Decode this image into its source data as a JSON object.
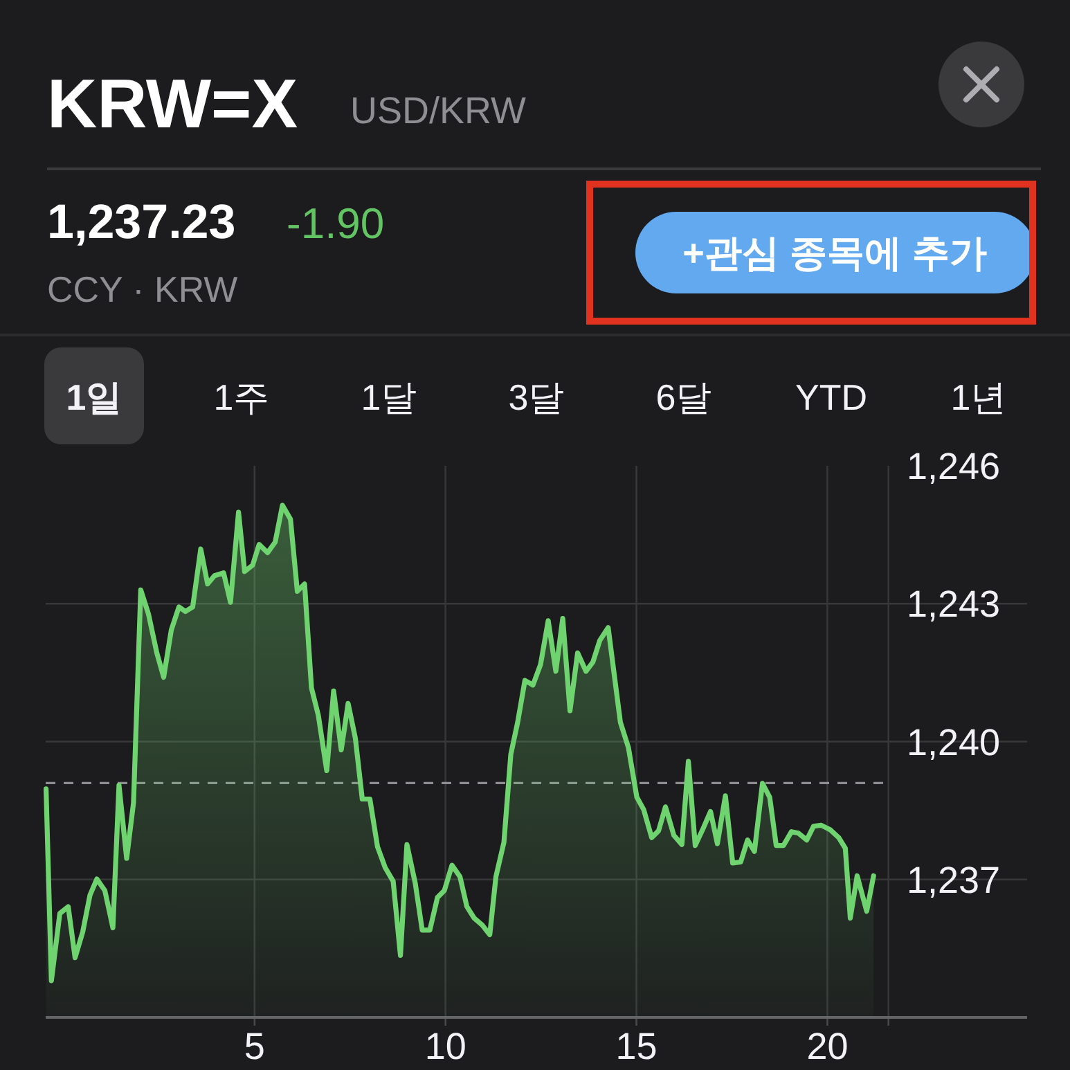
{
  "chart_data": {
    "type": "area",
    "title": "KRW=X",
    "subtitle": "USD/KRW",
    "color": "#6fd46f",
    "x": [
      -0.46,
      -0.32,
      -0.1,
      0.12,
      0.3,
      0.5,
      0.69,
      0.87,
      1.08,
      1.29,
      1.45,
      1.65,
      1.83,
      2.02,
      2.22,
      2.44,
      2.62,
      2.82,
      3.02,
      3.19,
      3.38,
      3.59,
      3.77,
      3.95,
      4.19,
      4.37,
      4.58,
      4.74,
      4.95,
      5.12,
      5.34,
      5.54,
      5.73,
      5.94,
      6.12,
      6.31,
      6.49,
      6.67,
      6.89,
      7.07,
      7.27,
      7.45,
      7.64,
      7.82,
      8.02,
      8.22,
      8.42,
      8.63,
      8.82,
      8.99,
      9.21,
      9.39,
      9.59,
      9.79,
      9.97,
      10.17,
      10.38,
      10.56,
      10.75,
      10.96,
      11.16,
      11.32,
      11.53,
      11.71,
      11.89,
      12.08,
      12.29,
      12.49,
      12.69,
      12.89,
      13.07,
      13.26,
      13.46,
      13.68,
      13.86,
      14.04,
      14.26,
      14.58,
      14.79,
      15.01,
      15.19,
      15.4,
      15.58,
      15.76,
      15.98,
      16.19,
      16.36,
      16.54,
      16.72,
      16.94,
      17.12,
      17.33,
      17.52,
      17.73,
      17.91,
      18.09,
      18.3,
      18.49,
      18.66,
      18.85,
      19.06,
      19.24,
      19.46,
      19.64,
      19.84,
      20.08,
      20.3,
      20.47,
      20.6,
      20.78,
      21.03,
      21.21
    ],
    "values": [
      1238.97,
      1234.8,
      1236.26,
      1236.41,
      1235.3,
      1235.86,
      1236.66,
      1237.01,
      1236.76,
      1235.95,
      1239.05,
      1237.46,
      1238.67,
      1243.3,
      1242.78,
      1241.93,
      1241.4,
      1242.43,
      1242.93,
      1242.83,
      1242.93,
      1244.19,
      1243.43,
      1243.61,
      1243.67,
      1243.03,
      1244.99,
      1243.7,
      1243.84,
      1244.29,
      1244.11,
      1244.34,
      1245.14,
      1244.84,
      1243.27,
      1243.43,
      1241.17,
      1240.57,
      1239.37,
      1241.1,
      1239.82,
      1240.83,
      1240.07,
      1238.75,
      1238.75,
      1237.71,
      1237.26,
      1236.96,
      1235.35,
      1237.76,
      1236.91,
      1235.9,
      1235.9,
      1236.61,
      1236.76,
      1237.31,
      1237.06,
      1236.41,
      1236.16,
      1236.01,
      1235.8,
      1237.06,
      1237.81,
      1239.72,
      1240.42,
      1241.33,
      1241.23,
      1241.68,
      1242.63,
      1241.53,
      1242.68,
      1240.67,
      1241.93,
      1241.53,
      1241.73,
      1242.2,
      1242.48,
      1240.42,
      1239.87,
      1238.79,
      1238.52,
      1237.91,
      1238.06,
      1238.58,
      1237.96,
      1237.76,
      1239.57,
      1237.74,
      1238.06,
      1238.48,
      1237.78,
      1238.82,
      1237.36,
      1237.38,
      1237.86,
      1237.61,
      1239.09,
      1238.79,
      1237.74,
      1237.74,
      1238.04,
      1238.01,
      1237.86,
      1238.16,
      1238.18,
      1238.08,
      1237.91,
      1237.68,
      1236.16,
      1237.08,
      1236.31,
      1237.08
    ],
    "xlim": [
      -0.47,
      25.23
    ],
    "ylim": [
      1234,
      1246
    ],
    "xticks": [
      5,
      10,
      15,
      20,
      {
        "value": 21.6,
        "label": null
      }
    ],
    "yticks": [
      {
        "value": 1237,
        "label": "1,237"
      },
      {
        "value": 1240,
        "label": "1,240"
      },
      {
        "value": 1243,
        "label": "1,243"
      },
      {
        "value": 1246,
        "label": "1,246"
      }
    ],
    "grid": true,
    "ref_lines": [
      {
        "axis": "y",
        "value": 1239.1,
        "line_style": "dashed",
        "color": "#8e8e93"
      }
    ],
    "annotations": [
      "1,237.23",
      "-1.90",
      "CCY · KRW",
      "+관심 종목에 추가",
      "1일",
      "1주",
      "1달",
      "3달",
      "6달",
      "YTD",
      "1년"
    ]
  }
}
